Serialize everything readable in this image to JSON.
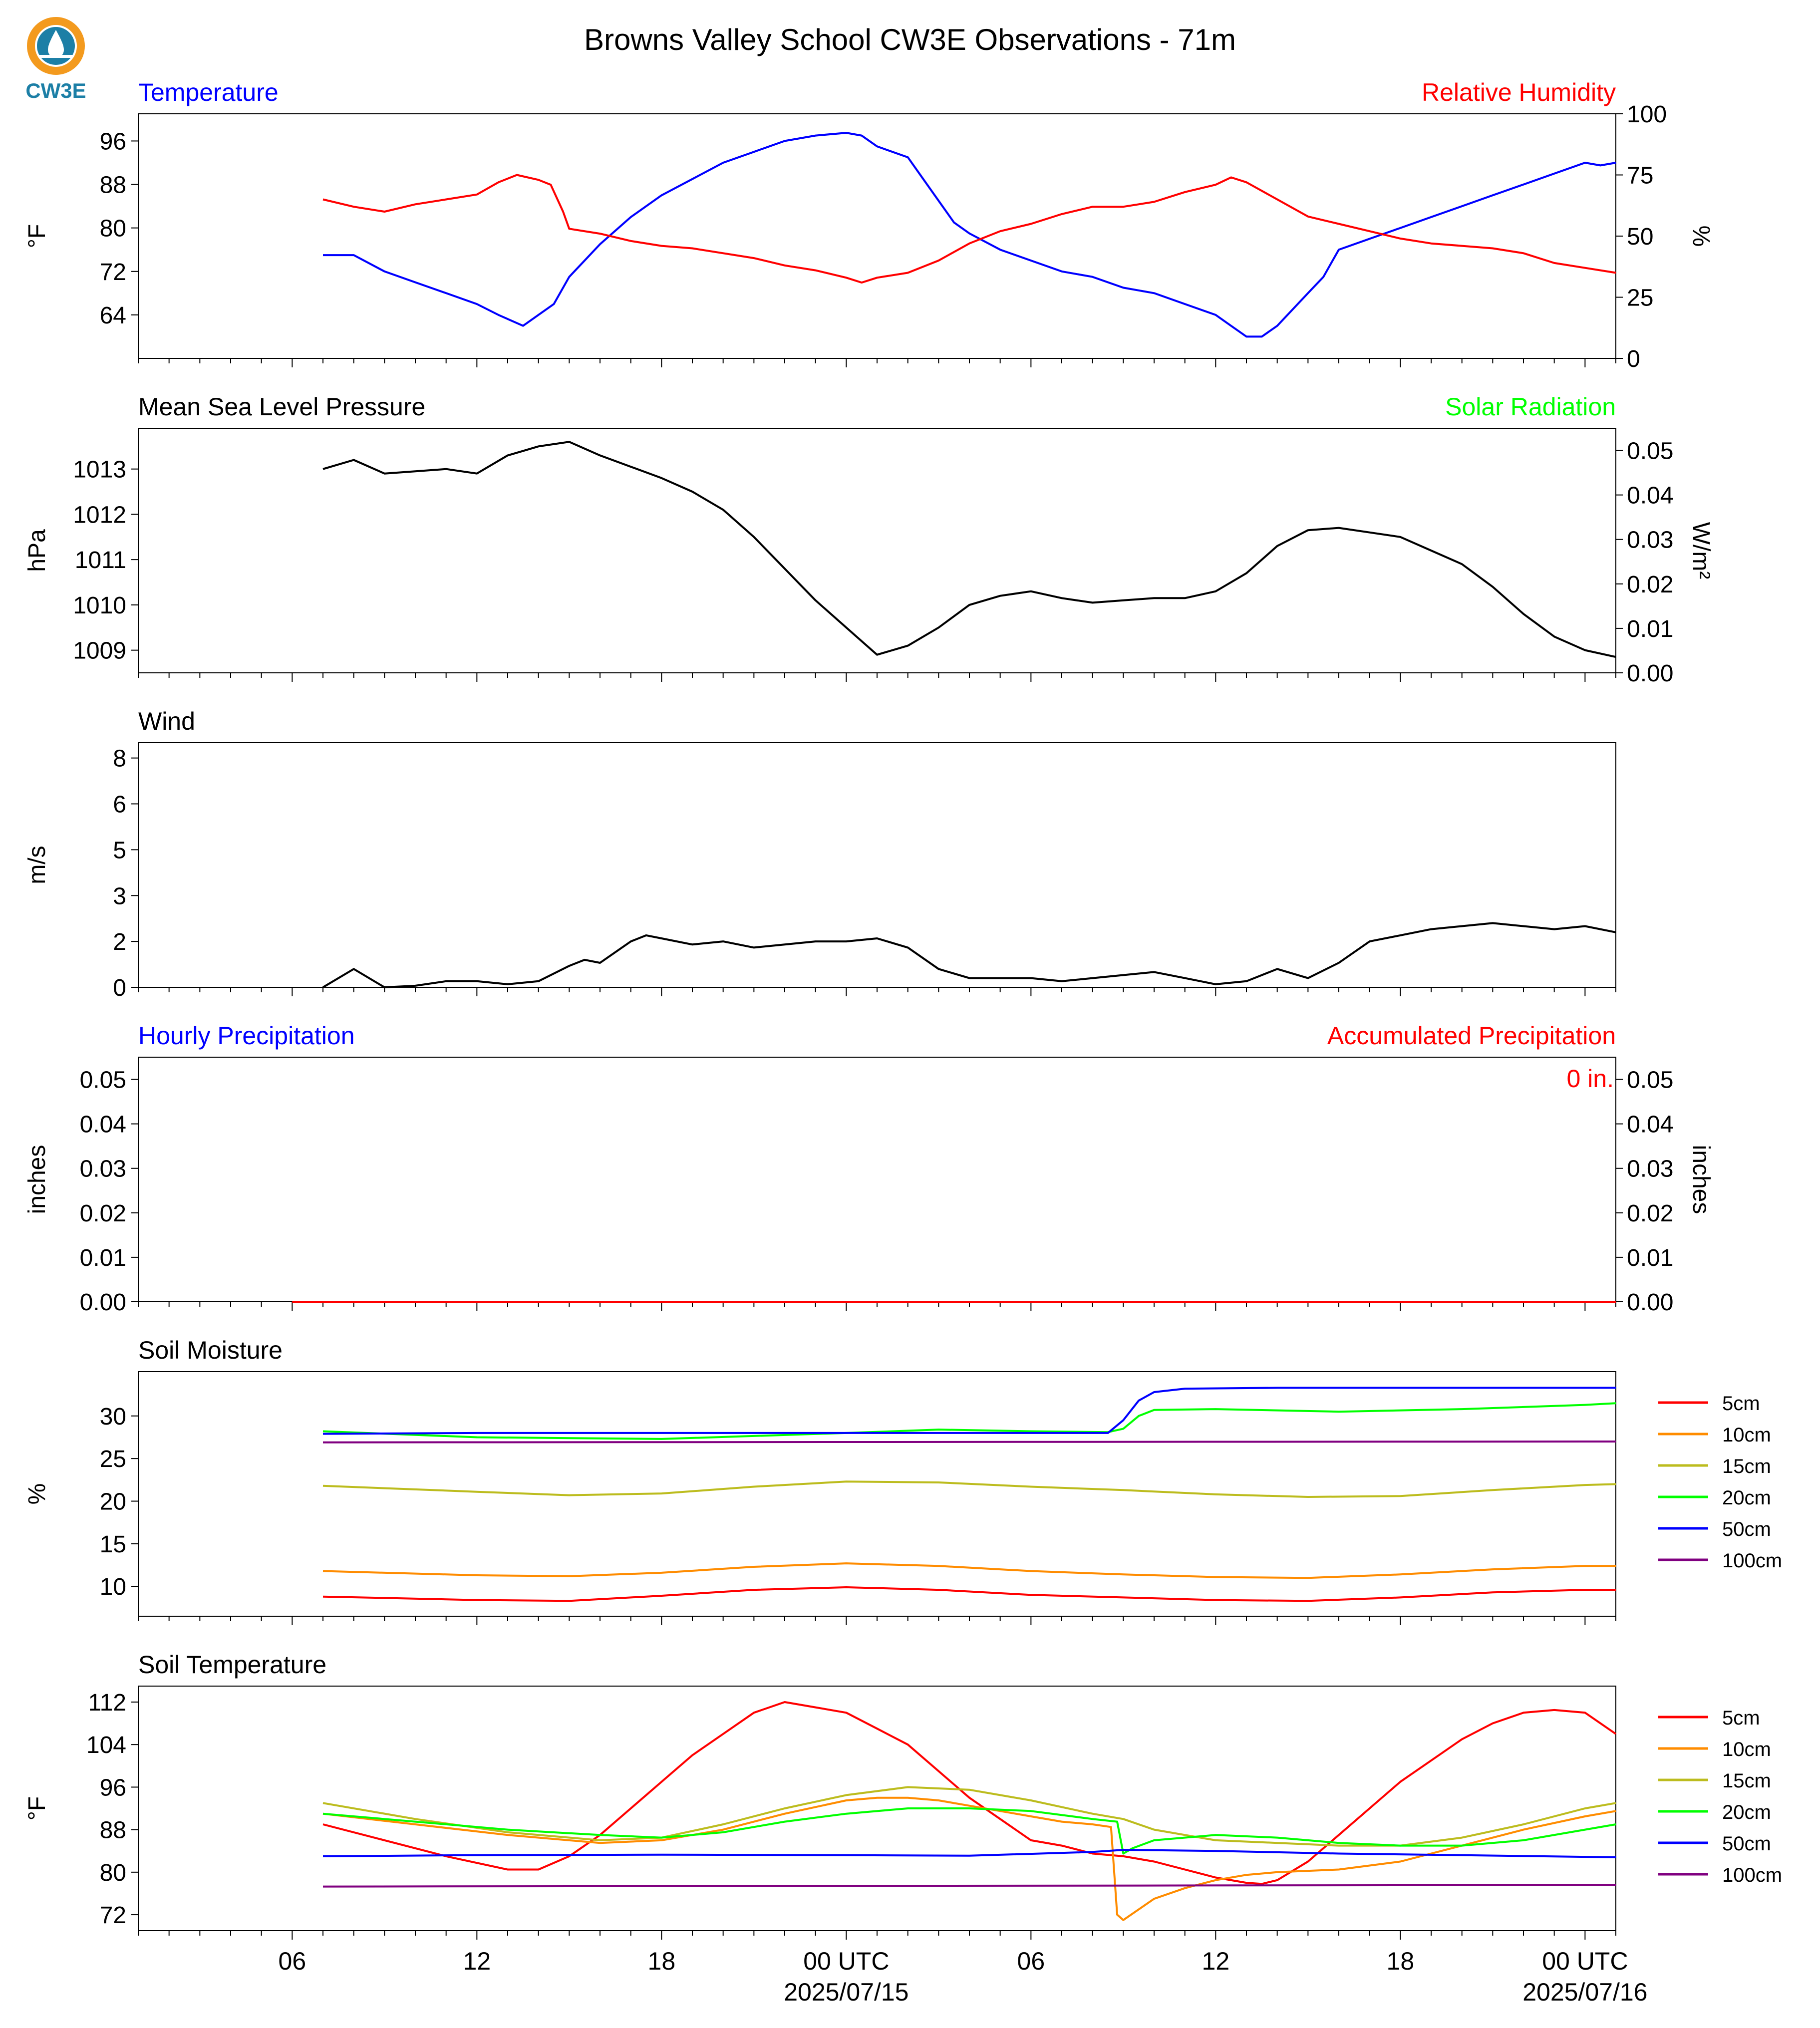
{
  "title": "Browns Valley School CW3E Observations - 71m",
  "logo": {
    "text": "CW3E",
    "colors": {
      "ring": "#f39a1e",
      "drop": "#1c7fa6",
      "text": "#1c7fa6"
    }
  },
  "x_axis": {
    "hour_ticks": [
      {
        "h": 6,
        "label": "06"
      },
      {
        "h": 12,
        "label": "12"
      },
      {
        "h": 18,
        "label": "18"
      },
      {
        "h": 24,
        "label": "00 UTC",
        "date": "2025/07/15"
      },
      {
        "h": 30,
        "label": "06"
      },
      {
        "h": 36,
        "label": "12"
      },
      {
        "h": 42,
        "label": "18"
      },
      {
        "h": 48,
        "label": "00 UTC",
        "date": "2025/07/16"
      }
    ],
    "range_hours": [
      1,
      49
    ]
  },
  "chart_data": [
    {
      "id": "temp_rh",
      "type": "line",
      "left_title": "Temperature",
      "right_title": "Relative Humidity",
      "left_title_color": "#0000ff",
      "right_title_color": "#ff0000",
      "ylabel": "°F",
      "ylabel2": "%",
      "ylim": [
        56,
        101
      ],
      "yticks": [
        64,
        72,
        80,
        88,
        96
      ],
      "ylim2": [
        0,
        100
      ],
      "yticks2": [
        0,
        25,
        50,
        75,
        100
      ],
      "series": [
        {
          "name": "",
          "axis": "left",
          "color": "#0000ff",
          "x": [
            7,
            8,
            9,
            10,
            11,
            12,
            12.7,
            13.5,
            14,
            14.5,
            15,
            16,
            17,
            18,
            19,
            20,
            21,
            22,
            23,
            24,
            24.5,
            25,
            26,
            26.5,
            27,
            27.5,
            28,
            29,
            30,
            31,
            32,
            33,
            34,
            35,
            36,
            36.5,
            37,
            37.5,
            38,
            38.5,
            39,
            39.5,
            40,
            41,
            42,
            43,
            44,
            45,
            46,
            47,
            47.5,
            48,
            48.5,
            49
          ],
          "y": [
            75,
            75,
            72,
            70,
            68,
            66,
            64,
            62,
            64,
            66,
            71,
            77,
            82,
            86,
            89,
            92,
            94,
            96,
            97,
            97.5,
            97,
            95,
            93,
            89,
            85,
            81,
            79,
            76,
            74,
            72,
            71,
            69,
            68,
            66,
            64,
            62,
            60,
            60,
            62,
            65,
            68,
            71,
            76,
            78,
            80,
            82,
            84,
            86,
            88,
            90,
            91,
            92,
            91.5,
            92
          ]
        },
        {
          "name": "",
          "axis": "right",
          "color": "#ff0000",
          "x": [
            7,
            8,
            9,
            10,
            11,
            12,
            12.7,
            13.3,
            14,
            14.4,
            14.8,
            15,
            16,
            17,
            18,
            19,
            20,
            21,
            22,
            23,
            24,
            24.5,
            25,
            26,
            27,
            28,
            29,
            30,
            31,
            32,
            33,
            34,
            35,
            36,
            36.5,
            37,
            38,
            39,
            40,
            41,
            42,
            43,
            44,
            45,
            46,
            47,
            48,
            49
          ],
          "y": [
            65,
            62,
            60,
            63,
            65,
            67,
            72,
            75,
            73,
            71,
            60,
            53,
            51,
            48,
            46,
            45,
            43,
            41,
            38,
            36,
            33,
            31,
            33,
            35,
            40,
            47,
            52,
            55,
            59,
            62,
            62,
            64,
            68,
            71,
            74,
            72,
            65,
            58,
            55,
            52,
            49,
            47,
            46,
            45,
            43,
            39,
            37,
            35
          ]
        }
      ]
    },
    {
      "id": "pressure",
      "type": "line",
      "left_title": "Mean Sea Level Pressure",
      "right_title": "Solar Radiation",
      "left_title_color": "#000000",
      "right_title_color": "#00ff00",
      "ylabel": "hPa",
      "ylabel2": "W/m²",
      "ylim": [
        1008.5,
        1013.9
      ],
      "yticks": [
        1009,
        1010,
        1011,
        1012,
        1013
      ],
      "ylim2": [
        0.0,
        0.055
      ],
      "yticks2": [
        0.0,
        0.01,
        0.02,
        0.03,
        0.04,
        0.05
      ],
      "series": [
        {
          "name": "",
          "axis": "left",
          "color": "#000000",
          "x": [
            7,
            8,
            9,
            10,
            11,
            12,
            13,
            13.5,
            14,
            15,
            16,
            17,
            18,
            19,
            20,
            21,
            22,
            23,
            24,
            25,
            26,
            27,
            28,
            29,
            30,
            31,
            32,
            33,
            34,
            35,
            36,
            37,
            38,
            39,
            40,
            41,
            42,
            43,
            44,
            45,
            46,
            47,
            48,
            49
          ],
          "y": [
            1013.0,
            1013.2,
            1012.9,
            1012.95,
            1013.0,
            1012.9,
            1013.3,
            1013.4,
            1013.5,
            1013.6,
            1013.3,
            1013.05,
            1012.8,
            1012.5,
            1012.1,
            1011.5,
            1010.8,
            1010.1,
            1009.5,
            1008.9,
            1009.1,
            1009.5,
            1010.0,
            1010.2,
            1010.3,
            1010.15,
            1010.05,
            1010.1,
            1010.15,
            1010.15,
            1010.3,
            1010.7,
            1011.3,
            1011.65,
            1011.7,
            1011.6,
            1011.5,
            1011.2,
            1010.9,
            1010.4,
            1009.8,
            1009.3,
            1009.0,
            1008.85
          ]
        }
      ]
    },
    {
      "id": "wind",
      "type": "line",
      "left_title": "Wind",
      "left_title_color": "#000000",
      "ylabel": "m/s",
      "ylim": [
        0,
        8.0
      ],
      "yticks": [
        0.0,
        1.5,
        3.0,
        4.5,
        6.0,
        7.5
      ],
      "series": [
        {
          "name": "",
          "axis": "left",
          "color": "#000000",
          "x": [
            7,
            8,
            9,
            10,
            11,
            12,
            13,
            14,
            15,
            15.5,
            16,
            17,
            17.5,
            18,
            19,
            20,
            21,
            22,
            23,
            24,
            25,
            26,
            27,
            28,
            29,
            30,
            31,
            32,
            33,
            34,
            35,
            36,
            37,
            38,
            39,
            40,
            41,
            42,
            43,
            44,
            45,
            46,
            47,
            48,
            49
          ],
          "y": [
            0.0,
            0.6,
            0.0,
            0.05,
            0.2,
            0.2,
            0.1,
            0.2,
            0.7,
            0.9,
            0.8,
            1.5,
            1.7,
            1.6,
            1.4,
            1.5,
            1.3,
            1.4,
            1.5,
            1.5,
            1.6,
            1.3,
            0.6,
            0.3,
            0.3,
            0.3,
            0.2,
            0.3,
            0.4,
            0.5,
            0.3,
            0.1,
            0.2,
            0.6,
            0.3,
            0.8,
            1.5,
            1.7,
            1.9,
            2.0,
            2.1,
            2.0,
            1.9,
            2.0,
            1.8
          ]
        }
      ]
    },
    {
      "id": "precip",
      "type": "line",
      "left_title": "Hourly Precipitation",
      "right_title": "Accumulated Precipitation",
      "left_title_color": "#0000ff",
      "right_title_color": "#ff0000",
      "annotation": "0 in.",
      "ylabel": "inches",
      "ylabel2": "inches",
      "ylim": [
        0,
        0.055
      ],
      "yticks": [
        0.0,
        0.01,
        0.02,
        0.03,
        0.04,
        0.05
      ],
      "ylim2": [
        0,
        0.055
      ],
      "yticks2": [
        0.0,
        0.01,
        0.02,
        0.03,
        0.04,
        0.05
      ],
      "series": [
        {
          "name": "",
          "axis": "left",
          "color": "#ff0000",
          "x": [
            6,
            49
          ],
          "y": [
            0,
            0
          ]
        }
      ]
    },
    {
      "id": "soil_moisture",
      "type": "line",
      "left_title": "Soil Moisture",
      "left_title_color": "#000000",
      "ylabel": "%",
      "ylim": [
        6.5,
        35.2
      ],
      "yticks": [
        10,
        15,
        20,
        25,
        30
      ],
      "legend": "right",
      "series": [
        {
          "name": "5cm",
          "color": "#ff0000",
          "x": [
            7,
            12,
            15,
            18,
            21,
            24,
            27,
            30,
            33,
            36,
            39,
            42,
            45,
            48,
            49
          ],
          "y": [
            8.8,
            8.4,
            8.3,
            8.9,
            9.6,
            9.9,
            9.6,
            9.0,
            8.7,
            8.4,
            8.3,
            8.7,
            9.3,
            9.6,
            9.6
          ]
        },
        {
          "name": "10cm",
          "color": "#ff8c00",
          "x": [
            7,
            12,
            15,
            18,
            21,
            24,
            27,
            30,
            33,
            36,
            39,
            42,
            45,
            48,
            49
          ],
          "y": [
            11.8,
            11.3,
            11.2,
            11.6,
            12.3,
            12.7,
            12.4,
            11.8,
            11.4,
            11.1,
            11.0,
            11.4,
            12.0,
            12.4,
            12.4
          ]
        },
        {
          "name": "15cm",
          "color": "#bcbc1e",
          "x": [
            7,
            12,
            15,
            18,
            21,
            24,
            27,
            30,
            33,
            36,
            39,
            42,
            45,
            48,
            49
          ],
          "y": [
            21.8,
            21.1,
            20.7,
            20.9,
            21.7,
            22.3,
            22.2,
            21.7,
            21.3,
            20.8,
            20.5,
            20.6,
            21.3,
            21.9,
            22.0
          ]
        },
        {
          "name": "20cm",
          "color": "#00ff00",
          "x": [
            7,
            12,
            18,
            24,
            27,
            30,
            32.5,
            33,
            33.5,
            34,
            36,
            40,
            44,
            48,
            49
          ],
          "y": [
            28.2,
            27.5,
            27.3,
            28.0,
            28.4,
            28.2,
            28.1,
            28.5,
            30.0,
            30.7,
            30.8,
            30.5,
            30.8,
            31.3,
            31.5
          ]
        },
        {
          "name": "50cm",
          "color": "#0000ff",
          "x": [
            7,
            12,
            18,
            24,
            30,
            32.5,
            33,
            33.5,
            34,
            35,
            38,
            49
          ],
          "y": [
            27.9,
            28.0,
            28.0,
            28.0,
            28.0,
            28.0,
            29.5,
            31.8,
            32.8,
            33.2,
            33.3,
            33.3
          ]
        },
        {
          "name": "100cm",
          "color": "#800080",
          "x": [
            7,
            49
          ],
          "y": [
            26.9,
            27.0
          ]
        }
      ]
    },
    {
      "id": "soil_temperature",
      "type": "line",
      "left_title": "Soil Temperature",
      "left_title_color": "#000000",
      "ylabel": "°F",
      "ylim": [
        69,
        115
      ],
      "yticks": [
        72,
        80,
        88,
        96,
        104,
        112
      ],
      "legend": "right",
      "series": [
        {
          "name": "5cm",
          "color": "#ff0000",
          "x": [
            7,
            9,
            11,
            13,
            14,
            15,
            16,
            17,
            18,
            19,
            20,
            21,
            22,
            23,
            24,
            25,
            26,
            27,
            28,
            29,
            30,
            31,
            32,
            33,
            34,
            35,
            36,
            37,
            37.5,
            38,
            39,
            40,
            41,
            42,
            43,
            44,
            45,
            46,
            47,
            48,
            49
          ],
          "y": [
            89,
            86,
            83,
            80.5,
            80.5,
            83,
            87,
            92,
            97,
            102,
            106,
            110,
            112,
            111,
            110,
            107,
            104,
            99,
            94,
            90,
            86,
            85,
            83.5,
            83,
            82,
            80.5,
            79,
            78,
            77.8,
            78.5,
            82,
            87,
            92,
            97,
            101,
            105,
            108,
            110,
            110.5,
            110,
            106
          ]
        },
        {
          "name": "10cm",
          "color": "#ff8c00",
          "x": [
            7,
            10,
            13,
            16,
            18,
            20,
            22,
            24,
            25,
            26,
            27,
            28,
            29,
            30,
            31,
            32,
            32.6,
            32.8,
            33,
            33.5,
            34,
            35,
            36,
            37,
            38,
            40,
            42,
            44,
            46,
            48,
            49
          ],
          "y": [
            91,
            89,
            87,
            85.5,
            86,
            88,
            91,
            93.5,
            94,
            94,
            93.5,
            92.5,
            91.5,
            90.5,
            89.5,
            89,
            88.5,
            72,
            71,
            73,
            75,
            77,
            78.5,
            79.5,
            80,
            80.5,
            82,
            85,
            88,
            90.5,
            91.5
          ]
        },
        {
          "name": "15cm",
          "color": "#bcbc1e",
          "x": [
            7,
            10,
            13,
            16,
            18,
            20,
            22,
            24,
            26,
            28,
            30,
            32,
            33,
            34,
            36,
            38,
            40,
            42,
            44,
            46,
            48,
            49
          ],
          "y": [
            93,
            90,
            87.5,
            86,
            86.5,
            89,
            92,
            94.5,
            96,
            95.5,
            93.5,
            91,
            90,
            88,
            86,
            85.5,
            85,
            85,
            86.5,
            89,
            92,
            93
          ]
        },
        {
          "name": "20cm",
          "color": "#00ff00",
          "x": [
            7,
            10,
            13,
            16,
            18,
            20,
            22,
            24,
            26,
            28,
            30,
            32,
            32.8,
            33,
            33.3,
            34,
            36,
            38,
            40,
            42,
            44,
            46,
            48,
            49
          ],
          "y": [
            91,
            89.5,
            88,
            87,
            86.5,
            87.5,
            89.5,
            91,
            92,
            92,
            91.5,
            90,
            89.5,
            83.5,
            84.5,
            86,
            87,
            86.5,
            85.5,
            85,
            85,
            86,
            88,
            89
          ]
        },
        {
          "name": "50cm",
          "color": "#0000ff",
          "x": [
            7,
            12,
            18,
            24,
            28,
            32,
            33,
            36,
            40,
            44,
            49
          ],
          "y": [
            83,
            83.2,
            83.3,
            83.2,
            83.1,
            83.8,
            84.2,
            84,
            83.5,
            83.2,
            82.8
          ]
        },
        {
          "name": "100cm",
          "color": "#800080",
          "x": [
            7,
            49
          ],
          "y": [
            77.3,
            77.6
          ]
        }
      ]
    }
  ]
}
